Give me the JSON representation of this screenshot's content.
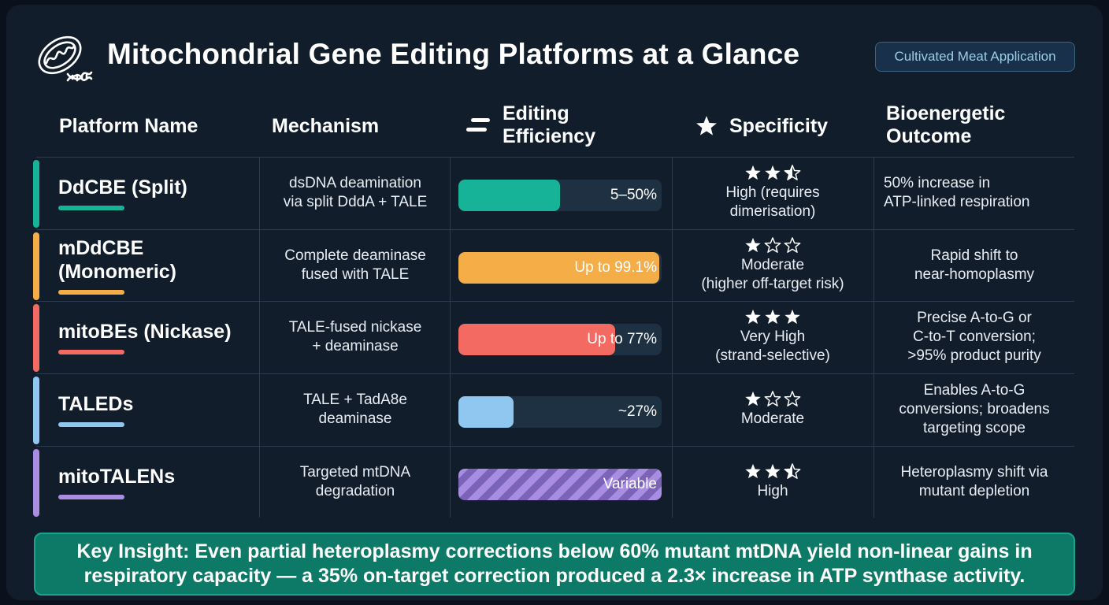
{
  "header": {
    "title": "Mitochondrial Gene Editing Platforms at a Glance",
    "badge": "Cultivated Meat Application",
    "logo_icon": "mitochondrion-dna-icon"
  },
  "columns": {
    "platform": "Platform Name",
    "mechanism": "Mechanism",
    "efficiency_line1": "Editing",
    "efficiency_line2": "Efficiency",
    "specificity": "Specificity",
    "outcome_line1": "Bioenergetic",
    "outcome_line2": "Outcome"
  },
  "rows": [
    {
      "name": "DdCBE (Split)",
      "color": "#17b398",
      "mechanism_line1": "dsDNA deamination",
      "mechanism_line2": "via split DddA + TALE",
      "efficiency_label": "5–50%",
      "efficiency_fraction": 0.5,
      "striped": false,
      "stars": 2.5,
      "specificity_line1": "High (requires",
      "specificity_line2": "dimerisation)",
      "outcome_line1": "50% increase in",
      "outcome_line2": "ATP-linked respiration",
      "outcome_line3": ""
    },
    {
      "name": "mDdCBE (Monomeric)",
      "color": "#f5ad48",
      "mechanism_line1": "Complete deaminase",
      "mechanism_line2": "fused with TALE",
      "efficiency_label": "Up to 99.1%",
      "efficiency_fraction": 0.991,
      "striped": false,
      "stars": 1,
      "specificity_line1": "Moderate",
      "specificity_line2": "(higher off-target risk)",
      "outcome_line1": "Rapid shift to",
      "outcome_line2": "near-homoplasmy",
      "outcome_line3": ""
    },
    {
      "name": "mitoBEs (Nickase)",
      "color": "#f36a62",
      "mechanism_line1": "TALE-fused nickase",
      "mechanism_line2": "+ deaminase",
      "efficiency_label": "Up to 77%",
      "efficiency_fraction": 0.77,
      "striped": false,
      "stars": 3,
      "specificity_line1": "Very High",
      "specificity_line2": "(strand-selective)",
      "outcome_line1": "Precise A-to-G or",
      "outcome_line2": "C-to-T conversion;",
      "outcome_line3": ">95% product purity"
    },
    {
      "name": "TALEDs",
      "color": "#8fc7f0",
      "mechanism_line1": "TALE + TadA8e",
      "mechanism_line2": "deaminase",
      "efficiency_label": "~27%",
      "efficiency_fraction": 0.27,
      "striped": false,
      "stars": 1,
      "specificity_line1": "Moderate",
      "specificity_line2": "",
      "outcome_line1": "Enables A-to-G",
      "outcome_line2": "conversions; broadens",
      "outcome_line3": "targeting scope"
    },
    {
      "name": "mitoTALENs",
      "color": "#a88de0",
      "mechanism_line1": "Targeted mtDNA",
      "mechanism_line2": "degradation",
      "efficiency_label": "Variable",
      "efficiency_fraction": 1.0,
      "striped": true,
      "stars": 2.5,
      "specificity_line1": "High",
      "specificity_line2": "",
      "outcome_line1": "Heteroplasmy shift via",
      "outcome_line2": "mutant depletion",
      "outcome_line3": ""
    }
  ],
  "insight": {
    "line1": "Key Insight: Even partial heteroplasmy corrections below 60% mutant mtDNA yield non-linear gains in",
    "line2": "respiratory capacity — a 35% on-target correction produced a 2.3× increase in ATP synthase activity."
  }
}
